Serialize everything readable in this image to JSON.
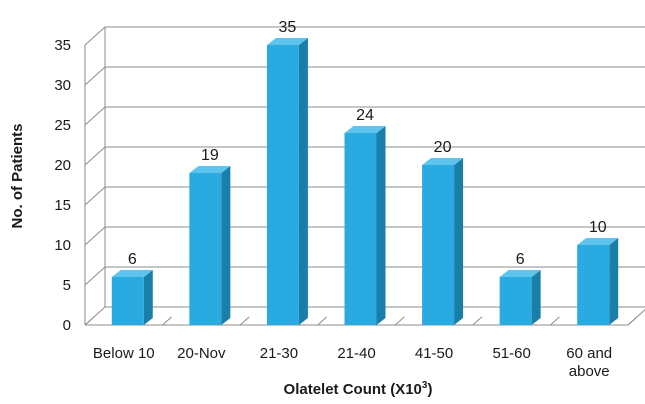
{
  "chart_data": {
    "type": "bar",
    "categories": [
      "Below 10",
      "20-Nov",
      "21-30",
      "21-40",
      "41-50",
      "51-60",
      "60 and above"
    ],
    "values": [
      6,
      19,
      35,
      24,
      20,
      6,
      10
    ],
    "xlabel": "Olatelet Count (X10",
    "xlabel_sup": "3",
    "xlabel_end": ")",
    "ylabel": "No. of Patients",
    "ylim": [
      0,
      35
    ],
    "yticks": [
      0,
      5,
      10,
      15,
      20,
      25,
      30,
      35
    ],
    "grid": true,
    "legend": "none",
    "colors": {
      "bar_front": "#29abe2",
      "bar_side": "#1a7fa8",
      "bar_top": "#5ec4ee",
      "grid": "#8c8c8c"
    }
  }
}
